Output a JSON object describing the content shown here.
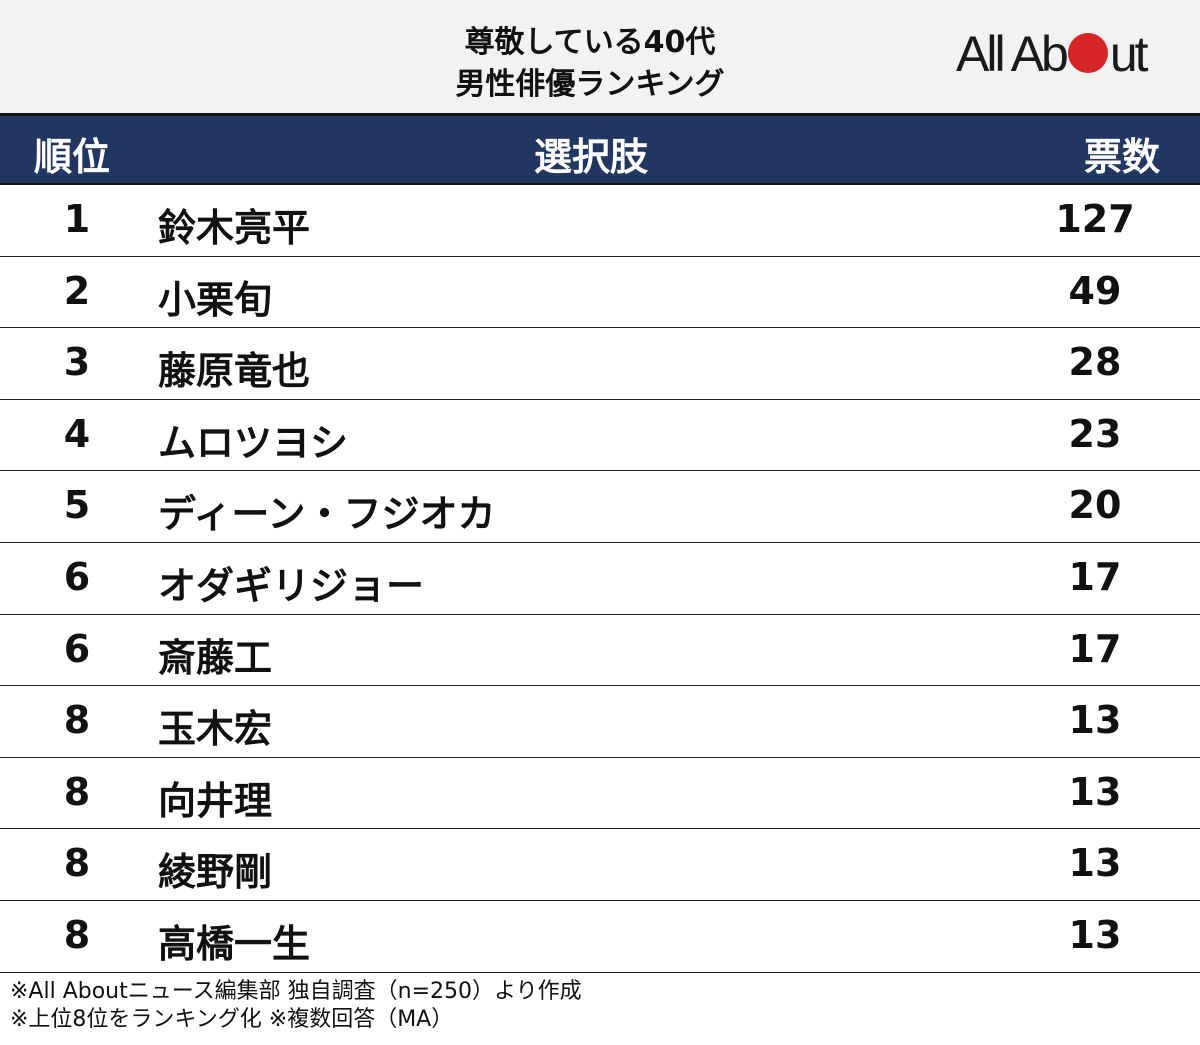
{
  "header": {
    "title_line1": "尊敬している40代",
    "title_line2": "男性俳優ランキング",
    "logo_pre": "All Ab",
    "logo_post": "ut",
    "logo_dot_color": "#d7262a"
  },
  "table": {
    "col_rank": "順位",
    "col_choice": "選択肢",
    "col_votes": "票数",
    "rows": [
      {
        "rank": "1",
        "name": "鈴木亮平",
        "votes": "127"
      },
      {
        "rank": "2",
        "name": "小栗旬",
        "votes": "49"
      },
      {
        "rank": "3",
        "name": "藤原竜也",
        "votes": "28"
      },
      {
        "rank": "4",
        "name": "ムロツヨシ",
        "votes": "23"
      },
      {
        "rank": "5",
        "name": "ディーン・フジオカ",
        "votes": "20"
      },
      {
        "rank": "6",
        "name": "オダギリジョー",
        "votes": "17"
      },
      {
        "rank": "6",
        "name": "斎藤工",
        "votes": "17"
      },
      {
        "rank": "8",
        "name": "玉木宏",
        "votes": "13"
      },
      {
        "rank": "8",
        "name": "向井理",
        "votes": "13"
      },
      {
        "rank": "8",
        "name": "綾野剛",
        "votes": "13"
      },
      {
        "rank": "8",
        "name": "高橋一生",
        "votes": "13"
      }
    ]
  },
  "notes": {
    "line1": "※All Aboutニュース編集部 独自調査（n=250）より作成",
    "line2": "※上位8位をランキング化 ※複数回答（MA）"
  },
  "chart_data": {
    "type": "table",
    "title": "尊敬している40代男性俳優ランキング",
    "columns": [
      "順位",
      "選択肢",
      "票数"
    ],
    "categories": [
      "鈴木亮平",
      "小栗旬",
      "藤原竜也",
      "ムロツヨシ",
      "ディーン・フジオカ",
      "オダギリジョー",
      "斎藤工",
      "玉木宏",
      "向井理",
      "綾野剛",
      "高橋一生"
    ],
    "ranks": [
      1,
      2,
      3,
      4,
      5,
      6,
      6,
      8,
      8,
      8,
      8
    ],
    "values": [
      127,
      49,
      28,
      23,
      20,
      17,
      17,
      13,
      13,
      13,
      13
    ],
    "notes": [
      "※All Aboutニュース編集部 独自調査（n=250）より作成",
      "※上位8位をランキング化 ※複数回答（MA）"
    ]
  }
}
